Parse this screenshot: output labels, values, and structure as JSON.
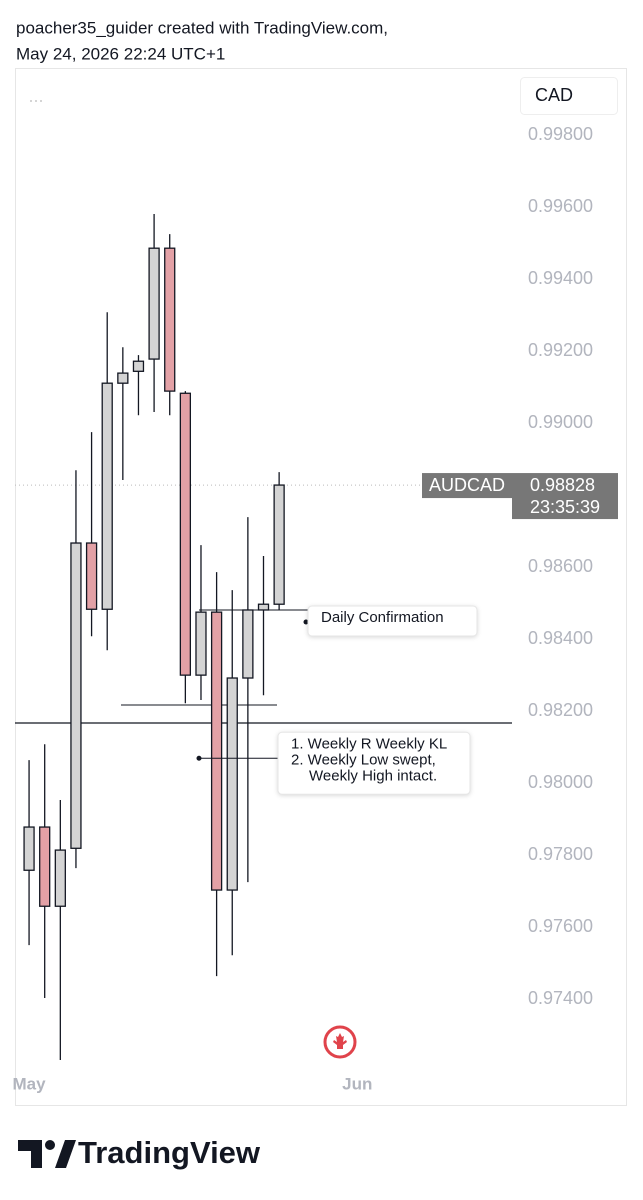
{
  "header": {
    "line1": "poacher35_guider created with TradingView.com,",
    "line2": "May 24, 2026 22:24 UTC+1"
  },
  "chart_data": {
    "type": "candlestick",
    "symbol": "AUDCAD",
    "currency": "CAD",
    "countdown": "23:35:39",
    "up_color": "#d4d4d4",
    "down_color": "#e3a1a6",
    "open": [
      0.97758,
      0.97878,
      0.97658,
      0.97819,
      0.98667,
      0.98483,
      0.99111,
      0.99144,
      0.99178,
      0.99486,
      0.99083,
      0.983,
      0.98475,
      0.97703,
      0.98292,
      0.98481,
      0.98497
    ],
    "high": [
      0.98064,
      0.98108,
      0.97953,
      0.98869,
      0.98975,
      0.99308,
      0.99211,
      0.99189,
      0.99581,
      0.99525,
      0.99089,
      0.98661,
      0.98586,
      0.98536,
      0.98739,
      0.98631,
      0.98864
    ],
    "low": [
      0.9755,
      0.97403,
      0.97231,
      0.97764,
      0.98408,
      0.98369,
      0.98842,
      0.99022,
      0.99031,
      0.99022,
      0.98222,
      0.98231,
      0.97464,
      0.97522,
      0.97725,
      0.98244,
      0.98481
    ],
    "close": [
      0.97878,
      0.97658,
      0.97814,
      0.98667,
      0.98483,
      0.99111,
      0.99139,
      0.99172,
      0.99486,
      0.99089,
      0.983,
      0.98475,
      0.97703,
      0.98292,
      0.98481,
      0.98497,
      0.98828
    ],
    "xlim": [
      -0.9,
      30.9
    ],
    "xticks": [
      {
        "value": 0,
        "label": "May"
      },
      {
        "value": 21,
        "label": "Jun"
      }
    ],
    "ylim": [
      0.97217,
      0.99981
    ],
    "yticks": [
      {
        "value": 0.974,
        "label": "0.97400"
      },
      {
        "value": 0.976,
        "label": "0.97600"
      },
      {
        "value": 0.978,
        "label": "0.97800"
      },
      {
        "value": 0.98,
        "label": "0.98000"
      },
      {
        "value": 0.982,
        "label": "0.98200"
      },
      {
        "value": 0.984,
        "label": "0.98400"
      },
      {
        "value": 0.986,
        "label": "0.98600"
      },
      {
        "value": 0.988,
        "label": "0.98800"
      },
      {
        "value": 0.99,
        "label": "0.99000"
      },
      {
        "value": 0.992,
        "label": "0.99200"
      },
      {
        "value": 0.994,
        "label": "0.99400"
      },
      {
        "value": 0.996,
        "label": "0.99600"
      },
      {
        "value": 0.998,
        "label": "0.99800"
      }
    ],
    "levels": [
      0.98167,
      0.98217
    ],
    "annotations": [
      {
        "value": 0.98481,
        "lines": [
          "Daily Confirmation"
        ]
      },
      {
        "value": 0.98069,
        "lines": [
          "1. Weekly R Weekly KL",
          "2. Weekly Low swept,",
          "Weekly High intact."
        ]
      }
    ]
  },
  "footer": {
    "brand": "TradingView"
  }
}
